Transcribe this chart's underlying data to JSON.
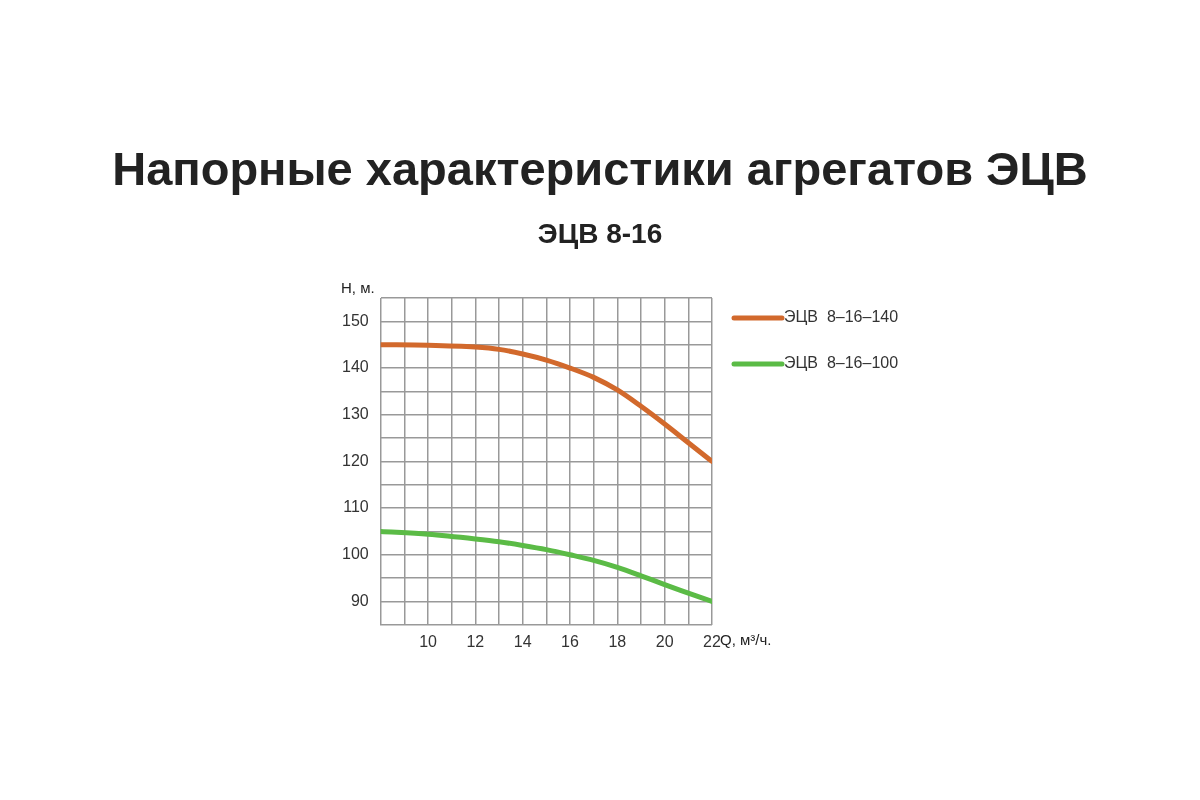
{
  "chart_data": {
    "type": "line",
    "title": "Напорные характеристики агрегатов ЭЦВ",
    "subtitle": "ЭЦВ 8-16",
    "xlabel": "Q, м³/ч.",
    "ylabel": "H, м.",
    "x": [
      8,
      10,
      12,
      13,
      14,
      15,
      16,
      17,
      18,
      19,
      20,
      21,
      22
    ],
    "series": [
      {
        "name": "ЭЦВ  8–16–140",
        "color": "#d2692c",
        "values": [
          145,
          144.9,
          144.5,
          144,
          143,
          141.7,
          140,
          138,
          135.3,
          131.8,
          128,
          124,
          120
        ]
      },
      {
        "name": "ЭЦВ  8–16–100",
        "color": "#5bbb46",
        "values": [
          105,
          104.4,
          103.4,
          102.8,
          102,
          101.1,
          100,
          98.8,
          97.3,
          95.5,
          93.6,
          91.8,
          90
        ]
      }
    ],
    "xlim": [
      8,
      22
    ],
    "xticks": [
      {
        "value": 8,
        "label": null
      },
      {
        "value": 9,
        "label": null
      },
      10,
      {
        "value": 11,
        "label": null
      },
      12,
      {
        "value": 13,
        "label": null
      },
      14,
      {
        "value": 15,
        "label": null
      },
      16,
      {
        "value": 17,
        "label": null
      },
      18,
      {
        "value": 19,
        "label": null
      },
      20,
      {
        "value": 21,
        "label": null
      },
      22
    ],
    "ylim": [
      85,
      155
    ],
    "yticks": [
      {
        "value": 85,
        "label": null
      },
      90,
      {
        "value": 95,
        "label": null
      },
      100,
      {
        "value": 105,
        "label": null
      },
      110,
      {
        "value": 115,
        "label": null
      },
      120,
      {
        "value": 125,
        "label": null
      },
      130,
      {
        "value": 135,
        "label": null
      },
      140,
      {
        "value": 145,
        "label": null
      },
      150,
      {
        "value": 155,
        "label": null
      }
    ],
    "grid": true,
    "legend": "top right",
    "marker": "none",
    "line_style": "solid"
  }
}
